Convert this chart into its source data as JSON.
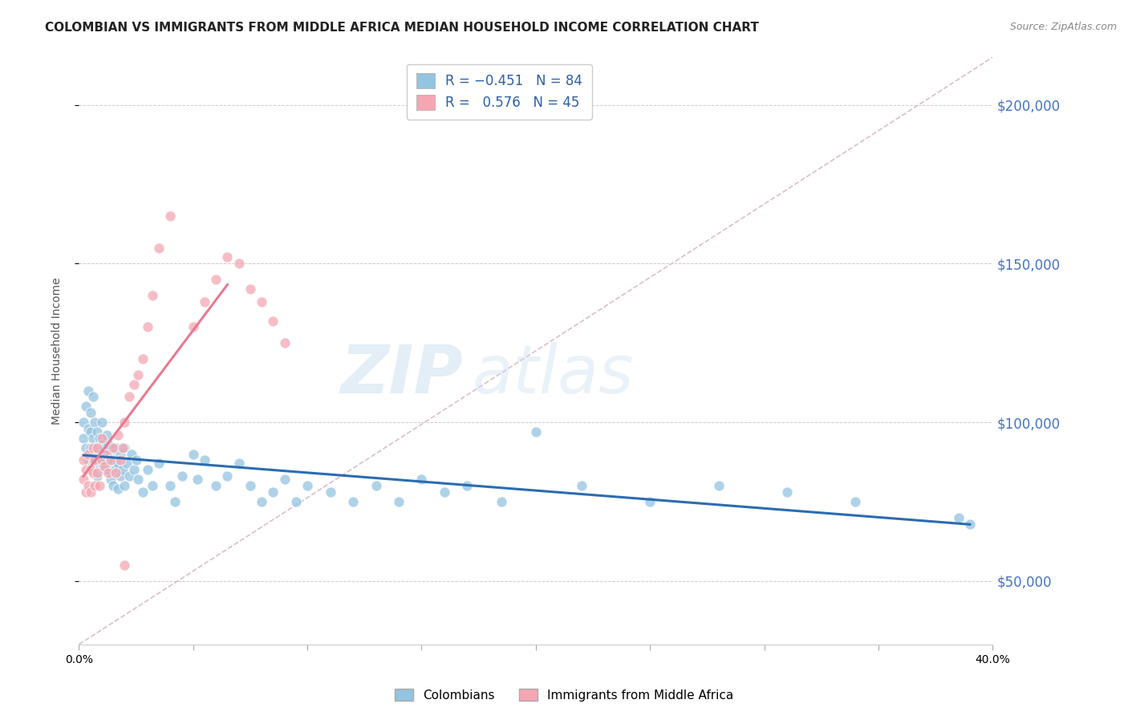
{
  "title": "COLOMBIAN VS IMMIGRANTS FROM MIDDLE AFRICA MEDIAN HOUSEHOLD INCOME CORRELATION CHART",
  "source": "Source: ZipAtlas.com",
  "ylabel": "Median Household Income",
  "xlim": [
    0,
    0.4
  ],
  "ylim": [
    30000,
    215000
  ],
  "yticks_right": [
    50000,
    100000,
    150000,
    200000
  ],
  "ytick_labels_right": [
    "$50,000",
    "$100,000",
    "$150,000",
    "$200,000"
  ],
  "blue_color": "#93c4e0",
  "pink_color": "#f4a7b3",
  "blue_line_color": "#2b6cb0",
  "pink_line_color": "#e87a90",
  "diag_color": "#d4b8c8",
  "label1": "Colombians",
  "label2": "Immigrants from Middle Africa",
  "watermark_zip": "ZIP",
  "watermark_atlas": "atlas",
  "title_fontsize": 11,
  "axis_label_fontsize": 10,
  "tick_fontsize": 10,
  "legend_fontsize": 11,
  "blue_scatter_x": [
    0.002,
    0.002,
    0.003,
    0.003,
    0.004,
    0.004,
    0.004,
    0.005,
    0.005,
    0.005,
    0.006,
    0.006,
    0.006,
    0.007,
    0.007,
    0.007,
    0.008,
    0.008,
    0.008,
    0.009,
    0.009,
    0.01,
    0.01,
    0.01,
    0.011,
    0.011,
    0.012,
    0.012,
    0.013,
    0.013,
    0.014,
    0.014,
    0.015,
    0.015,
    0.016,
    0.016,
    0.017,
    0.017,
    0.018,
    0.018,
    0.019,
    0.02,
    0.02,
    0.021,
    0.022,
    0.023,
    0.024,
    0.025,
    0.026,
    0.028,
    0.03,
    0.032,
    0.035,
    0.04,
    0.042,
    0.045,
    0.05,
    0.052,
    0.055,
    0.06,
    0.065,
    0.07,
    0.075,
    0.08,
    0.085,
    0.09,
    0.095,
    0.1,
    0.11,
    0.12,
    0.13,
    0.14,
    0.15,
    0.16,
    0.17,
    0.185,
    0.2,
    0.22,
    0.25,
    0.28,
    0.31,
    0.34,
    0.385,
    0.39
  ],
  "blue_scatter_y": [
    100000,
    95000,
    105000,
    92000,
    98000,
    88000,
    110000,
    103000,
    97000,
    92000,
    108000,
    95000,
    88000,
    100000,
    92000,
    85000,
    97000,
    90000,
    83000,
    95000,
    88000,
    100000,
    93000,
    87000,
    92000,
    85000,
    96000,
    88000,
    93000,
    85000,
    90000,
    82000,
    88000,
    80000,
    92000,
    85000,
    87000,
    79000,
    90000,
    83000,
    85000,
    92000,
    80000,
    87000,
    83000,
    90000,
    85000,
    88000,
    82000,
    78000,
    85000,
    80000,
    87000,
    80000,
    75000,
    83000,
    90000,
    82000,
    88000,
    80000,
    83000,
    87000,
    80000,
    75000,
    78000,
    82000,
    75000,
    80000,
    78000,
    75000,
    80000,
    75000,
    82000,
    78000,
    80000,
    75000,
    97000,
    80000,
    75000,
    80000,
    78000,
    75000,
    70000,
    68000
  ],
  "pink_scatter_x": [
    0.002,
    0.002,
    0.003,
    0.003,
    0.004,
    0.004,
    0.005,
    0.005,
    0.006,
    0.006,
    0.007,
    0.007,
    0.008,
    0.008,
    0.009,
    0.01,
    0.01,
    0.011,
    0.012,
    0.013,
    0.014,
    0.015,
    0.016,
    0.017,
    0.018,
    0.019,
    0.02,
    0.022,
    0.024,
    0.026,
    0.028,
    0.03,
    0.032,
    0.035,
    0.04,
    0.05,
    0.055,
    0.06,
    0.065,
    0.07,
    0.075,
    0.08,
    0.085,
    0.09,
    0.02
  ],
  "pink_scatter_y": [
    88000,
    82000,
    85000,
    78000,
    80000,
    90000,
    85000,
    78000,
    92000,
    84000,
    88000,
    80000,
    92000,
    84000,
    80000,
    95000,
    88000,
    86000,
    90000,
    84000,
    88000,
    92000,
    84000,
    96000,
    88000,
    92000,
    100000,
    108000,
    112000,
    115000,
    120000,
    130000,
    140000,
    155000,
    165000,
    130000,
    138000,
    145000,
    152000,
    150000,
    142000,
    138000,
    132000,
    125000,
    55000
  ]
}
